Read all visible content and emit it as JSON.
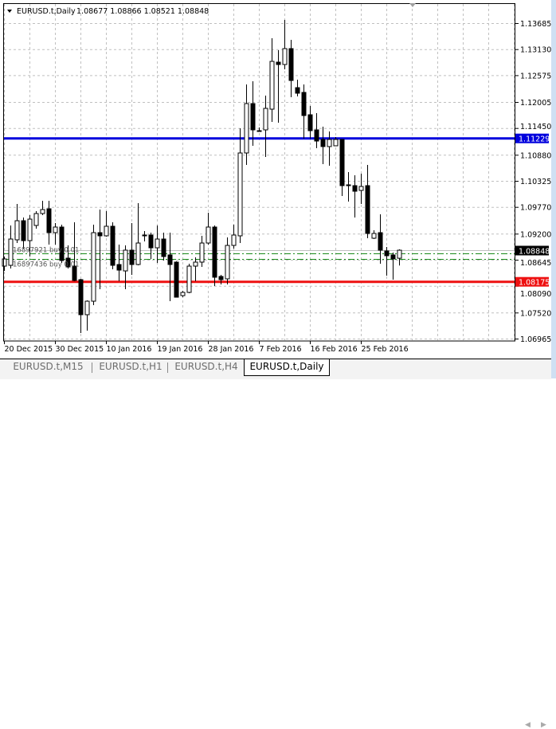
{
  "header": {
    "dropdown_icon": "triangle-down-icon",
    "symbol": "EURUSD.t,Daily",
    "ohlc": "1.08677 1.08866 1.08521 1.08848"
  },
  "tabs": [
    {
      "label": "EURUSD.t,M15",
      "active": false
    },
    {
      "label": "EURUSD.t,H1",
      "active": false
    },
    {
      "label": "EURUSD.t,H4",
      "active": false
    },
    {
      "label": "EURUSD.t,Daily",
      "active": true
    }
  ],
  "orders": [
    {
      "label": "16897921 buy 0.01",
      "price": 1.08781
    },
    {
      "label": "16897436 buy 0.01",
      "price": 1.08662
    }
  ],
  "lines": [
    {
      "price": 1.11229,
      "label": "1.11229",
      "color": "#0000dd"
    },
    {
      "price": 1.08175,
      "label": "1.08175",
      "color": "#ee1111"
    }
  ],
  "colors": {
    "order_line": "#1a8a1a",
    "grid": "#c0c0c0",
    "bid_line": "#c0c0c0",
    "current_tag": "#000000"
  },
  "chart_data": {
    "type": "candlestick",
    "symbol": "EURUSD.t",
    "timeframe": "Daily",
    "current_price": 1.08848,
    "current_price_label": "1.08848",
    "ylim": [
      1.06965,
      1.13685
    ],
    "grid": true,
    "y_ticks": [
      "1.13685",
      "1.13130",
      "1.12575",
      "1.12005",
      "1.11450",
      "1.10880",
      "1.10325",
      "1.09770",
      "1.09200",
      "1.08645",
      "1.08090",
      "1.07520",
      "1.06965"
    ],
    "x_ticks": [
      "20 Dec 2015",
      "30 Dec 2015",
      "10 Jan 2016",
      "19 Jan 2016",
      "28 Jan 2016",
      "7 Feb 2016",
      "16 Feb 2016",
      "25 Feb 2016"
    ],
    "candles_ohlc": [
      [
        1.08509,
        1.08713,
        1.08407,
        1.08662
      ],
      [
        1.08526,
        1.09375,
        1.08458,
        1.09086
      ],
      [
        1.09069,
        1.09833,
        1.09001,
        1.09476
      ],
      [
        1.09476,
        1.09544,
        1.08882,
        1.09052
      ],
      [
        1.09052,
        1.09595,
        1.08713,
        1.0951
      ],
      [
        1.09375,
        1.0968,
        1.09307,
        1.09629
      ],
      [
        1.09629,
        1.09901,
        1.09595,
        1.09714
      ],
      [
        1.09731,
        1.09901,
        1.08967,
        1.09222
      ],
      [
        1.09222,
        1.09426,
        1.08967,
        1.09341
      ],
      [
        1.09341,
        1.09392,
        1.08577,
        1.08628
      ],
      [
        1.08679,
        1.0895,
        1.08458,
        1.08492
      ],
      [
        1.08509,
        1.09442,
        1.08187,
        1.08204
      ],
      [
        1.08221,
        1.08238,
        1.07084,
        1.07474
      ],
      [
        1.07474,
        1.07779,
        1.07135,
        1.07762
      ],
      [
        1.07762,
        1.09392,
        1.07678,
        1.09222
      ],
      [
        1.09222,
        1.09714,
        1.08017,
        1.09154
      ],
      [
        1.09154,
        1.0968,
        1.09137,
        1.09358
      ],
      [
        1.09358,
        1.09442,
        1.08441,
        1.08526
      ],
      [
        1.08543,
        1.08967,
        1.08187,
        1.08424
      ],
      [
        1.08407,
        1.0895,
        1.08017,
        1.08849
      ],
      [
        1.08849,
        1.09426,
        1.08322,
        1.08543
      ],
      [
        1.08543,
        1.0985,
        1.08526,
        1.09001
      ],
      [
        1.09171,
        1.09256,
        1.09035,
        1.09171
      ],
      [
        1.09171,
        1.09222,
        1.08662,
        1.08899
      ],
      [
        1.08899,
        1.09375,
        1.08577,
        1.09086
      ],
      [
        1.09086,
        1.09222,
        1.08628,
        1.08713
      ],
      [
        1.08747,
        1.09222,
        1.07762,
        1.08543
      ],
      [
        1.08594,
        1.08611,
        1.07847,
        1.07847
      ],
      [
        1.07881,
        1.07983,
        1.07847,
        1.07949
      ],
      [
        1.07949,
        1.0856,
        1.07932,
        1.08509
      ],
      [
        1.08509,
        1.08696,
        1.08187,
        1.08594
      ],
      [
        1.08594,
        1.09154,
        1.08492,
        1.09001
      ],
      [
        1.09001,
        1.09646,
        1.08967,
        1.09341
      ],
      [
        1.09341,
        1.09375,
        1.08085,
        1.08272
      ],
      [
        1.08289,
        1.08322,
        1.08119,
        1.08221
      ],
      [
        1.08238,
        1.0912,
        1.08119,
        1.0895
      ],
      [
        1.0895,
        1.09392,
        1.08882,
        1.09171
      ],
      [
        1.09154,
        1.11445,
        1.09001,
        1.10919
      ],
      [
        1.10919,
        1.12378,
        1.10664,
        1.11971
      ],
      [
        1.11971,
        1.12446,
        1.11072,
        1.11411
      ],
      [
        1.11394,
        1.11462,
        1.11377,
        1.11394
      ],
      [
        1.11411,
        1.12141,
        1.10834,
        1.11869
      ],
      [
        1.11852,
        1.13363,
        1.11581,
        1.1287
      ],
      [
        1.12853,
        1.13108,
        1.11564,
        1.12803
      ],
      [
        1.12803,
        1.13753,
        1.12701,
        1.13142
      ],
      [
        1.13142,
        1.13329,
        1.12107,
        1.12463
      ],
      [
        1.1231,
        1.1248,
        1.12124,
        1.12192
      ],
      [
        1.12209,
        1.12378,
        1.11224,
        1.11716
      ],
      [
        1.11733,
        1.1192,
        1.11224,
        1.11394
      ],
      [
        1.11411,
        1.11767,
        1.11021,
        1.11173
      ],
      [
        1.11207,
        1.11479,
        1.10681,
        1.11055
      ],
      [
        1.11055,
        1.11377,
        1.10647,
        1.11207
      ],
      [
        1.11072,
        1.11258,
        1.11072,
        1.11207
      ],
      [
        1.11207,
        1.11207,
        1.10003,
        1.10223
      ],
      [
        1.1024,
        1.10512,
        1.09884,
        1.10223
      ],
      [
        1.10223,
        1.10444,
        1.09544,
        1.10104
      ],
      [
        1.10121,
        1.10478,
        1.09833,
        1.10206
      ],
      [
        1.10223,
        1.10664,
        1.09103,
        1.09205
      ],
      [
        1.09103,
        1.09273,
        1.09086,
        1.09205
      ],
      [
        1.09222,
        1.09612,
        1.0856,
        1.08849
      ],
      [
        1.08832,
        1.08916,
        1.08306,
        1.0873
      ],
      [
        1.08747,
        1.08798,
        1.08221,
        1.08662
      ],
      [
        1.08677,
        1.08866,
        1.08521,
        1.08848
      ]
    ]
  }
}
